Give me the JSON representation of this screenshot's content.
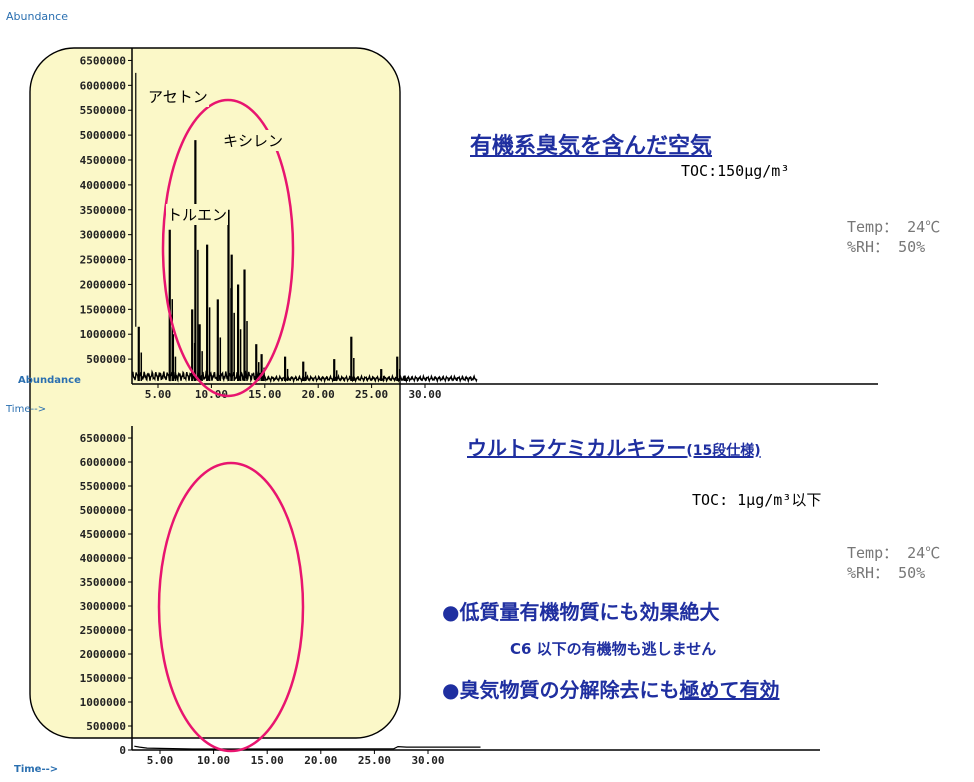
{
  "chart_data": [
    {
      "type": "line",
      "title": "有機系臭気を含んだ空気",
      "subtitle": "TOC:150μg/m³",
      "conditions": {
        "temp": "Temp： 24℃",
        "rh": "%RH： 50%"
      },
      "ylabel": "Abundance",
      "xlabel": "Time-->",
      "yticks": [
        "500000",
        "1000000",
        "1500000",
        "2000000",
        "2500000",
        "3000000",
        "3500000",
        "4000000",
        "4500000",
        "5000000",
        "5500000",
        "6000000",
        "6500000"
      ],
      "xticks": [
        "5.00",
        "10.00",
        "15.00",
        "20.00",
        "25.00",
        "30.00"
      ],
      "xlim": [
        2.5,
        35
      ],
      "ylim": [
        0,
        6750000
      ],
      "annotations": [
        {
          "text": "アセトン",
          "x": 3.2
        },
        {
          "text": "キシレン",
          "x": 8.5
        },
        {
          "text": "トルエン",
          "x": 6.1
        }
      ],
      "peaks": [
        {
          "x": 3.2,
          "y": 1150000
        },
        {
          "x": 6.1,
          "y": 3100000
        },
        {
          "x": 6.4,
          "y": 1000000
        },
        {
          "x": 8.2,
          "y": 1500000
        },
        {
          "x": 8.5,
          "y": 4900000
        },
        {
          "x": 8.9,
          "y": 1200000
        },
        {
          "x": 9.6,
          "y": 2800000
        },
        {
          "x": 10.6,
          "y": 1700000
        },
        {
          "x": 11.6,
          "y": 3500000
        },
        {
          "x": 11.9,
          "y": 2600000
        },
        {
          "x": 12.5,
          "y": 2000000
        },
        {
          "x": 13.1,
          "y": 2300000
        },
        {
          "x": 14.2,
          "y": 800000
        },
        {
          "x": 14.7,
          "y": 600000
        },
        {
          "x": 16.9,
          "y": 550000
        },
        {
          "x": 18.6,
          "y": 450000
        },
        {
          "x": 21.5,
          "y": 500000
        },
        {
          "x": 23.1,
          "y": 950000
        },
        {
          "x": 25.9,
          "y": 300000
        },
        {
          "x": 27.4,
          "y": 550000
        },
        {
          "x": 28.1,
          "y": 170000
        }
      ]
    },
    {
      "type": "line",
      "title": "ウルトラケミカルキラー",
      "title_suffix": "(15段仕様)",
      "subtitle": "TOC: 1μg/m³以下",
      "conditions": {
        "temp": "Temp： 24℃",
        "rh": "%RH： 50%"
      },
      "ylabel": "Abundance",
      "xlabel": "Time-->",
      "yticks": [
        "0",
        "500000",
        "1000000",
        "1500000",
        "2000000",
        "2500000",
        "3000000",
        "3500000",
        "4000000",
        "4500000",
        "5000000",
        "5500000",
        "6000000",
        "6500000"
      ],
      "xticks": [
        "5.00",
        "10.00",
        "15.00",
        "20.00",
        "25.00",
        "30.00"
      ],
      "xlim": [
        2.5,
        35
      ],
      "ylim": [
        0,
        6750000
      ],
      "trace": [
        [
          2.6,
          80000
        ],
        [
          3.1,
          60000
        ],
        [
          3.8,
          40000
        ],
        [
          8,
          20000
        ],
        [
          15,
          20000
        ],
        [
          23,
          25000
        ],
        [
          26.8,
          25000
        ],
        [
          27.2,
          70000
        ],
        [
          28,
          60000
        ],
        [
          34.9,
          60000
        ]
      ]
    }
  ],
  "features": {
    "bullet1": "●低質量有機物質にも効果絶大",
    "sub1": "C6 以下の有機物も逃しません",
    "bullet2_prefix": "●臭気物質の分解除去にも",
    "bullet2_emph": "極めて有効"
  },
  "colors": {
    "highlight_fill": "#fbf8c8",
    "ellipse": "#e8156f",
    "title_blue": "#1f2fa0",
    "axis_label_blue": "#2a6fb0"
  }
}
